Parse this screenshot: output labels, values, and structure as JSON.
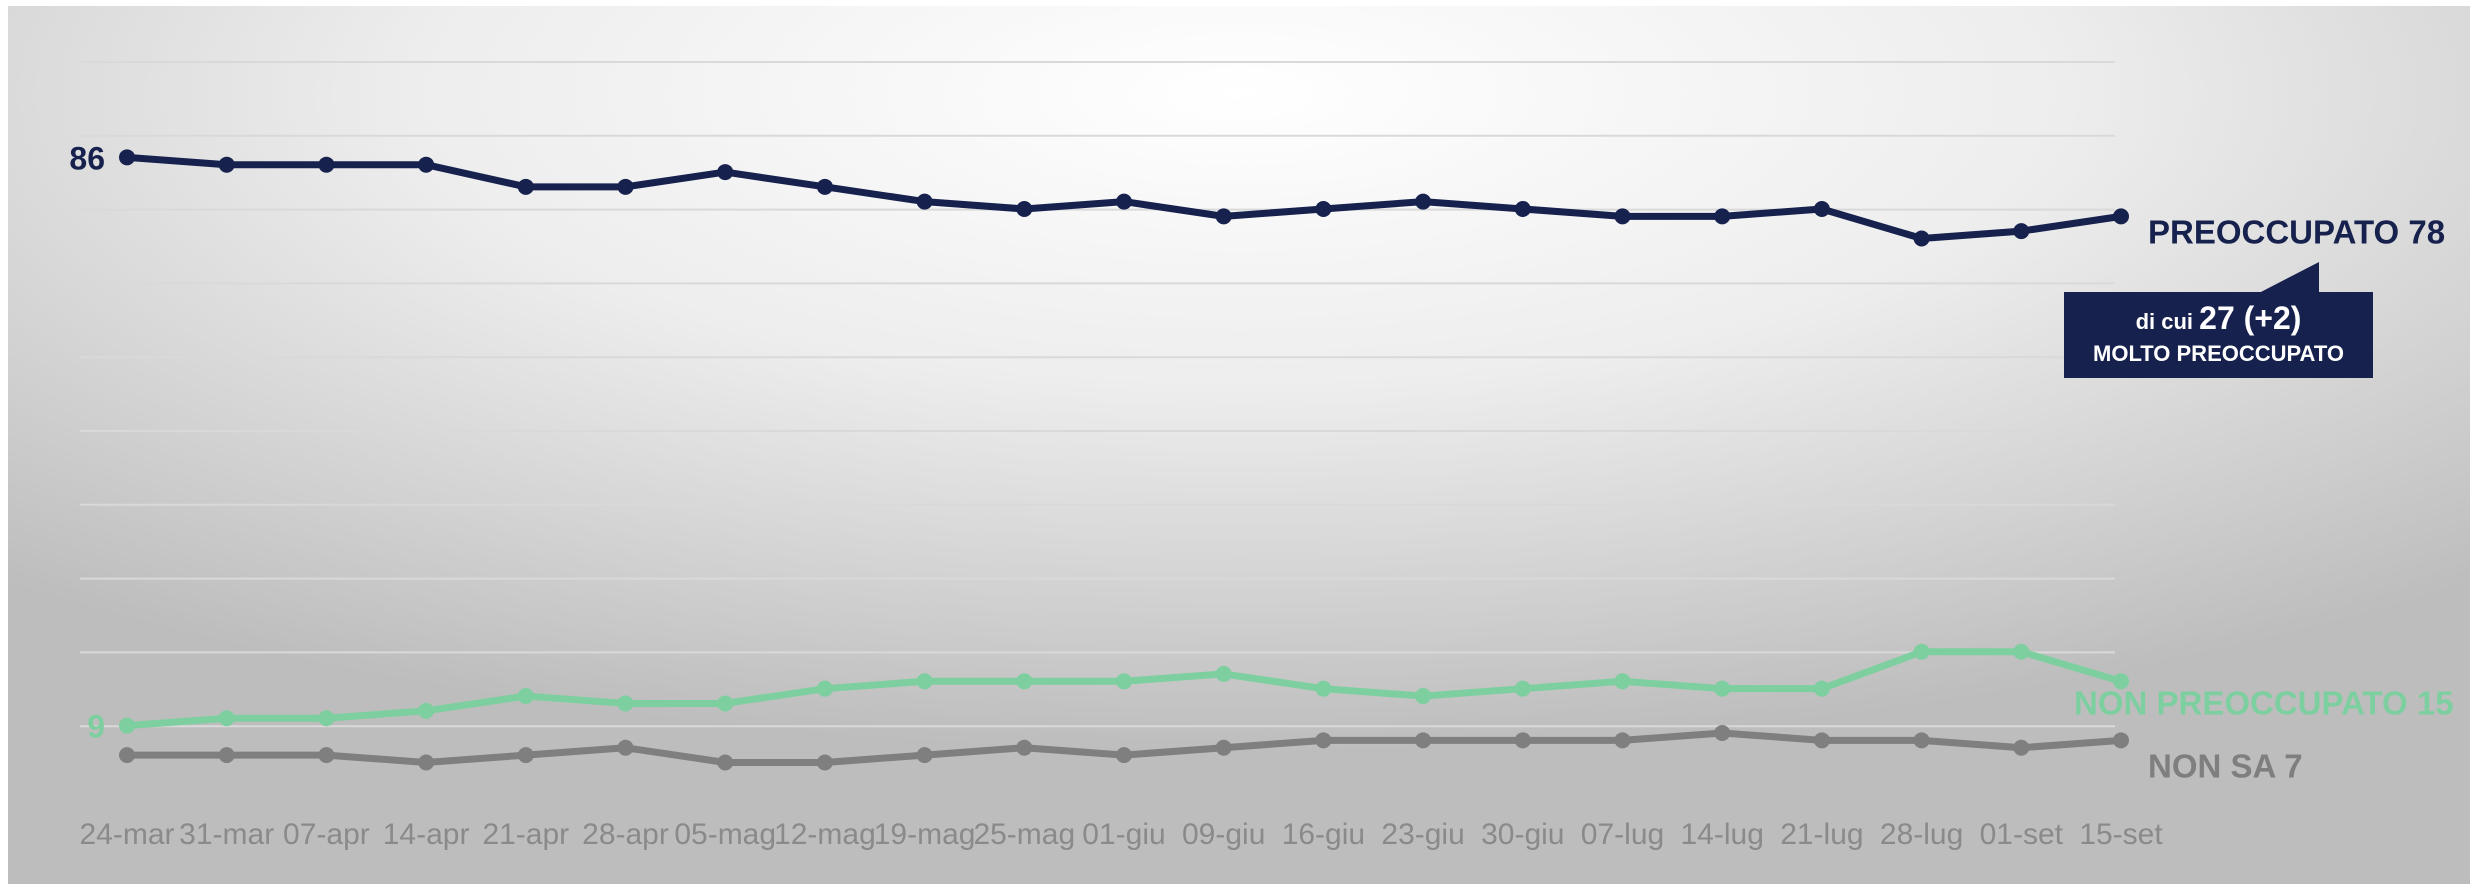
{
  "chart_data": {
    "type": "line",
    "categories": [
      "24-mar",
      "31-mar",
      "07-apr",
      "14-apr",
      "21-apr",
      "28-apr",
      "05-mag",
      "12-mag",
      "19-mag",
      "25-mag",
      "01-giu",
      "09-giu",
      "16-giu",
      "23-giu",
      "30-giu",
      "07-lug",
      "14-lug",
      "21-lug",
      "28-lug",
      "01-set",
      "15-set"
    ],
    "ylim": [
      0,
      100
    ],
    "grid": true,
    "series": [
      {
        "name": "PREOCCUPATO",
        "color": "#16214d",
        "values": [
          86,
          85,
          85,
          85,
          82,
          82,
          84,
          82,
          80,
          79,
          80,
          78,
          79,
          80,
          79,
          78,
          78,
          79,
          75,
          76,
          78
        ],
        "end_label": "PREOCCUPATO 78",
        "start_label": "86"
      },
      {
        "name": "NON PREOCCUPATO",
        "color": "#7ecfa0",
        "values": [
          9,
          10,
          10,
          11,
          13,
          12,
          12,
          14,
          15,
          15,
          15,
          16,
          14,
          13,
          14,
          15,
          14,
          14,
          19,
          19,
          15
        ],
        "end_label": "NON PREOCCUPATO 15",
        "start_label": "9"
      },
      {
        "name": "NON SA",
        "color": "#7f7f7f",
        "values": [
          5,
          5,
          5,
          4,
          5,
          6,
          4,
          4,
          5,
          6,
          5,
          6,
          7,
          7,
          7,
          7,
          8,
          7,
          7,
          6,
          7
        ],
        "end_label": "NON SA 7",
        "start_label": ""
      }
    ],
    "annotation": {
      "line1_prefix": "di cui",
      "line1_value": "27 (+2)",
      "line2": "MOLTO PREOCCUPATO"
    }
  }
}
